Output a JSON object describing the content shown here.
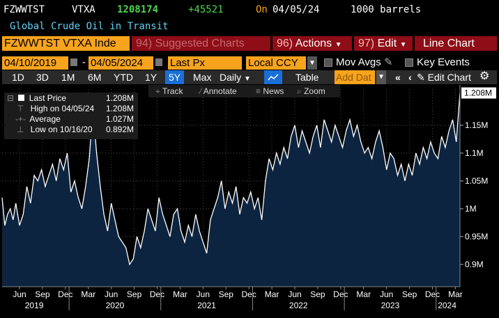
{
  "header": {
    "ticker": "FZWWTST",
    "index": "VTXA",
    "last": "1208174",
    "change": "+45521",
    "on_label": "On",
    "date": "04/05/24",
    "volume": "1000 barrels",
    "subtitle": "Global Crude Oil in Transit"
  },
  "toolbar": {
    "security": "FZWWTST VTXA Inde",
    "suggested": "94) Suggested Charts",
    "actions_num": "96)",
    "actions": "Actions",
    "edit_num": "97)",
    "edit": "Edit",
    "chart_type": "Line Chart"
  },
  "range": {
    "start": "04/10/2019",
    "sep": "-",
    "end": "04/05/2024",
    "field": "Last Px",
    "currency": "Local CCY",
    "mov_avgs": "Mov Avgs",
    "key_events": "Key Events"
  },
  "periods": [
    "1D",
    "3D",
    "1M",
    "6M",
    "YTD",
    "1Y",
    "5Y",
    "Max"
  ],
  "active_period": "5Y",
  "controls": {
    "frequency": "Daily",
    "table": "Table",
    "add_data": "Add Dat",
    "edit_chart": "Edit Chart"
  },
  "tools": {
    "track": "Track",
    "annotate": "Annotate",
    "news": "News",
    "zoom": "Zoom"
  },
  "legend": [
    {
      "label": "Last Price",
      "value": "1.208M"
    },
    {
      "label": "High on 04/05/24",
      "value": "1.208M"
    },
    {
      "label": "Average",
      "value": "1.027M"
    },
    {
      "label": "Low on 10/16/20",
      "value": "0.892M"
    }
  ],
  "icons": [
    "calendar-icon",
    "pencil-icon",
    "chart-line-icon",
    "gear-icon",
    "chevron-double-left-icon",
    "chevron-left-icon",
    "pencil-icon",
    "search-icon"
  ],
  "colors": {
    "accent": "#f7a31c",
    "area_fill": "#0d2440",
    "line": "#ffffff",
    "red_bar": "#8e0d16",
    "active_period": "#1a6fd6"
  },
  "chart_data": {
    "type": "area",
    "title": "Global Crude Oil in Transit",
    "ylabel": "",
    "xlabel": "",
    "ylim": [
      0.86,
      1.215
    ],
    "y_ticks": [
      0.9,
      0.95,
      1.0,
      1.05,
      1.1,
      1.15
    ],
    "y_tick_labels": [
      "0.9M",
      "0.95M",
      "1M",
      "1.05M",
      "1.1M",
      "1.15M"
    ],
    "last_value_label": "1.208M",
    "x_range": [
      2019.27,
      2024.26
    ],
    "month_ticks": [
      {
        "x": 2019.46,
        "label": "Jun"
      },
      {
        "x": 2019.71,
        "label": "Sep"
      },
      {
        "x": 2019.96,
        "label": "Dec"
      },
      {
        "x": 2020.21,
        "label": "Mar"
      },
      {
        "x": 2020.46,
        "label": "Jun"
      },
      {
        "x": 2020.71,
        "label": "Sep"
      },
      {
        "x": 2020.96,
        "label": "Dec"
      },
      {
        "x": 2021.21,
        "label": "Mar"
      },
      {
        "x": 2021.46,
        "label": "Jun"
      },
      {
        "x": 2021.71,
        "label": "Sep"
      },
      {
        "x": 2021.96,
        "label": "Dec"
      },
      {
        "x": 2022.21,
        "label": "Mar"
      },
      {
        "x": 2022.46,
        "label": "Jun"
      },
      {
        "x": 2022.71,
        "label": "Sep"
      },
      {
        "x": 2022.96,
        "label": "Dec"
      },
      {
        "x": 2023.21,
        "label": "Mar"
      },
      {
        "x": 2023.46,
        "label": "Jun"
      },
      {
        "x": 2023.71,
        "label": "Sep"
      },
      {
        "x": 2023.96,
        "label": "Dec"
      },
      {
        "x": 2024.21,
        "label": "Mar"
      }
    ],
    "year_labels": [
      {
        "x": 2019.62,
        "label": "2019"
      },
      {
        "x": 2020.5,
        "label": "2020"
      },
      {
        "x": 2021.5,
        "label": "2021"
      },
      {
        "x": 2022.5,
        "label": "2022"
      },
      {
        "x": 2023.5,
        "label": "2023"
      },
      {
        "x": 2024.12,
        "label": "2024"
      }
    ],
    "year_boundaries": [
      2020.0,
      2021.0,
      2022.0,
      2023.0,
      2024.0
    ],
    "series": [
      {
        "name": "Last Price",
        "x": [
          2019.27,
          2019.3,
          2019.33,
          2019.36,
          2019.39,
          2019.42,
          2019.46,
          2019.5,
          2019.54,
          2019.58,
          2019.62,
          2019.66,
          2019.7,
          2019.74,
          2019.78,
          2019.82,
          2019.86,
          2019.9,
          2019.94,
          2019.98,
          2020.02,
          2020.06,
          2020.1,
          2020.14,
          2020.18,
          2020.22,
          2020.26,
          2020.3,
          2020.34,
          2020.38,
          2020.42,
          2020.46,
          2020.5,
          2020.54,
          2020.58,
          2020.62,
          2020.66,
          2020.7,
          2020.74,
          2020.78,
          2020.82,
          2020.86,
          2020.9,
          2020.94,
          2020.98,
          2021.02,
          2021.06,
          2021.1,
          2021.14,
          2021.18,
          2021.22,
          2021.26,
          2021.3,
          2021.34,
          2021.38,
          2021.42,
          2021.46,
          2021.5,
          2021.54,
          2021.58,
          2021.62,
          2021.66,
          2021.7,
          2021.74,
          2021.78,
          2021.82,
          2021.86,
          2021.9,
          2021.94,
          2021.98,
          2022.02,
          2022.06,
          2022.1,
          2022.14,
          2022.18,
          2022.22,
          2022.26,
          2022.3,
          2022.34,
          2022.38,
          2022.42,
          2022.46,
          2022.5,
          2022.54,
          2022.58,
          2022.62,
          2022.66,
          2022.7,
          2022.74,
          2022.78,
          2022.82,
          2022.86,
          2022.9,
          2022.94,
          2022.98,
          2023.02,
          2023.06,
          2023.1,
          2023.14,
          2023.18,
          2023.22,
          2023.26,
          2023.3,
          2023.34,
          2023.38,
          2023.42,
          2023.46,
          2023.5,
          2023.54,
          2023.58,
          2023.62,
          2023.66,
          2023.7,
          2023.74,
          2023.78,
          2023.82,
          2023.86,
          2023.9,
          2023.94,
          2023.98,
          2024.02,
          2024.06,
          2024.1,
          2024.14,
          2024.18,
          2024.22,
          2024.26
        ],
        "values": [
          1.02,
          0.97,
          0.99,
          1.0,
          0.98,
          1.01,
          0.97,
          0.99,
          1.04,
          1.01,
          1.06,
          1.05,
          1.07,
          1.04,
          1.06,
          1.08,
          1.05,
          1.09,
          1.07,
          1.1,
          1.03,
          1.05,
          1.02,
          1.0,
          1.04,
          1.09,
          1.18,
          1.1,
          1.04,
          0.99,
          0.96,
          1.01,
          0.98,
          0.95,
          0.94,
          0.93,
          0.9,
          0.91,
          0.95,
          0.93,
          0.96,
          1.0,
          0.98,
          0.96,
          1.02,
          0.99,
          0.97,
          0.95,
          0.99,
          1.0,
          0.96,
          0.94,
          0.97,
          0.95,
          0.99,
          0.96,
          0.94,
          0.92,
          0.98,
          1.0,
          1.02,
          1.05,
          1.0,
          1.03,
          1.01,
          1.04,
          0.99,
          1.02,
          1.01,
          1.03,
          1.0,
          1.02,
          0.98,
          1.05,
          1.09,
          1.07,
          1.1,
          1.08,
          1.11,
          1.09,
          1.13,
          1.15,
          1.11,
          1.14,
          1.12,
          1.1,
          1.13,
          1.15,
          1.11,
          1.16,
          1.14,
          1.12,
          1.15,
          1.13,
          1.11,
          1.14,
          1.16,
          1.13,
          1.15,
          1.12,
          1.1,
          1.11,
          1.09,
          1.12,
          1.14,
          1.11,
          1.07,
          1.1,
          1.09,
          1.06,
          1.08,
          1.05,
          1.08,
          1.06,
          1.1,
          1.08,
          1.11,
          1.09,
          1.12,
          1.1,
          1.09,
          1.13,
          1.11,
          1.14,
          1.16,
          1.12,
          1.208
        ]
      }
    ]
  }
}
